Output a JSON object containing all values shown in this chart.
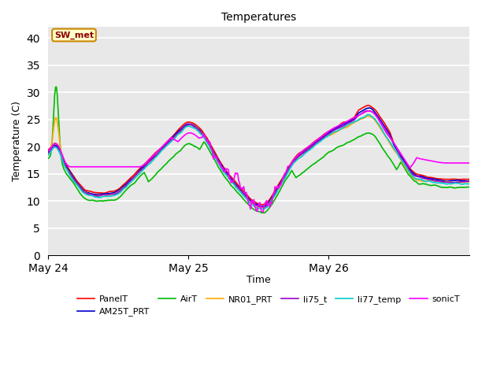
{
  "title": "Temperatures",
  "ylabel": "Temperature (C)",
  "xlabel": "Time",
  "annotation_text": "SW_met",
  "ylim": [
    0,
    42
  ],
  "yticks": [
    0,
    5,
    10,
    15,
    20,
    25,
    30,
    35,
    40
  ],
  "series_colors": {
    "PanelT": "#ff0000",
    "AM25T_PRT": "#0000cc",
    "AirT": "#00bb00",
    "NR01_PRT": "#ffaa00",
    "li75_t": "#9900cc",
    "li77_temp": "#00cccc",
    "sonicT": "#ff00ff"
  },
  "figsize": [
    6.4,
    4.8
  ],
  "dpi": 100,
  "bg_color": "#e8e8e8",
  "grid_color": "#ffffff",
  "lw": 1.2
}
